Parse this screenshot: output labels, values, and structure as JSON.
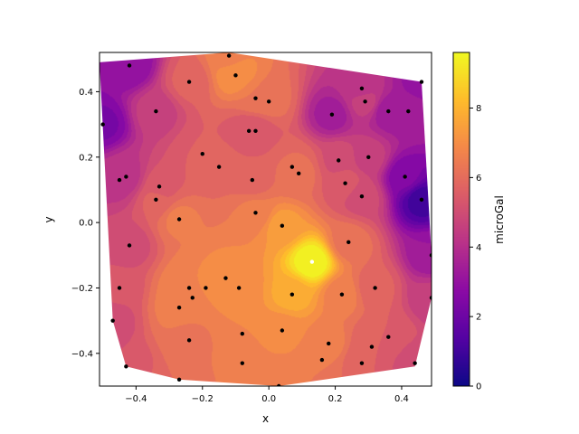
{
  "chart_data": {
    "type": "heatmap",
    "subtype": "filled-contour-with-scatter",
    "xlabel": "x",
    "ylabel": "y",
    "xlim": [
      -0.51,
      0.49
    ],
    "ylim": [
      -0.5,
      0.52
    ],
    "x_ticks": [
      -0.4,
      -0.2,
      0.0,
      0.2,
      0.4
    ],
    "x_tick_labels": [
      "−0.4",
      "−0.2",
      "0.0",
      "0.2",
      "0.4"
    ],
    "y_ticks": [
      -0.4,
      -0.2,
      0.0,
      0.2,
      0.4
    ],
    "y_tick_labels": [
      "−0.4",
      "−0.2",
      "0.0",
      "0.2",
      "0.4"
    ],
    "colormap": "plasma",
    "colorbar": {
      "label": "microGal",
      "range": [
        0,
        9.6
      ],
      "ticks": [
        0,
        2,
        4,
        6,
        8
      ],
      "tick_labels": [
        "0",
        "2",
        "4",
        "6",
        "8"
      ]
    },
    "points": [
      {
        "x": -0.42,
        "y": 0.48,
        "v": 2.8
      },
      {
        "x": -0.24,
        "y": 0.43,
        "v": 5.7
      },
      {
        "x": -0.12,
        "y": 0.51,
        "v": 6.6
      },
      {
        "x": -0.1,
        "y": 0.45,
        "v": 7.2
      },
      {
        "x": -0.04,
        "y": 0.38,
        "v": 6.4
      },
      {
        "x": 0.0,
        "y": 0.37,
        "v": 6.2
      },
      {
        "x": 0.28,
        "y": 0.41,
        "v": 4.2
      },
      {
        "x": 0.29,
        "y": 0.37,
        "v": 4.6
      },
      {
        "x": 0.46,
        "y": 0.43,
        "v": 3.0
      },
      {
        "x": -0.5,
        "y": 0.3,
        "v": 2.3
      },
      {
        "x": -0.34,
        "y": 0.34,
        "v": 4.6
      },
      {
        "x": -0.06,
        "y": 0.28,
        "v": 5.3
      },
      {
        "x": -0.04,
        "y": 0.28,
        "v": 5.3
      },
      {
        "x": 0.19,
        "y": 0.33,
        "v": 3.4
      },
      {
        "x": 0.36,
        "y": 0.34,
        "v": 3.3
      },
      {
        "x": 0.42,
        "y": 0.34,
        "v": 3.4
      },
      {
        "x": -0.2,
        "y": 0.21,
        "v": 5.6
      },
      {
        "x": -0.15,
        "y": 0.17,
        "v": 5.9
      },
      {
        "x": 0.07,
        "y": 0.17,
        "v": 6.0
      },
      {
        "x": 0.09,
        "y": 0.15,
        "v": 6.2
      },
      {
        "x": 0.21,
        "y": 0.19,
        "v": 5.1
      },
      {
        "x": 0.3,
        "y": 0.2,
        "v": 4.6
      },
      {
        "x": -0.43,
        "y": 0.14,
        "v": 4.2
      },
      {
        "x": -0.45,
        "y": 0.13,
        "v": 4.2
      },
      {
        "x": -0.33,
        "y": 0.11,
        "v": 5.4
      },
      {
        "x": -0.05,
        "y": 0.13,
        "v": 5.8
      },
      {
        "x": 0.23,
        "y": 0.12,
        "v": 5.4
      },
      {
        "x": 0.28,
        "y": 0.08,
        "v": 5.0
      },
      {
        "x": 0.41,
        "y": 0.14,
        "v": 2.5
      },
      {
        "x": 0.46,
        "y": 0.07,
        "v": 1.0
      },
      {
        "x": -0.34,
        "y": 0.07,
        "v": 5.7
      },
      {
        "x": -0.27,
        "y": 0.01,
        "v": 6.5
      },
      {
        "x": -0.04,
        "y": 0.03,
        "v": 6.5
      },
      {
        "x": 0.04,
        "y": -0.01,
        "v": 7.4
      },
      {
        "x": -0.42,
        "y": -0.07,
        "v": 5.0
      },
      {
        "x": 0.24,
        "y": -0.06,
        "v": 6.2
      },
      {
        "x": 0.13,
        "y": -0.12,
        "v": 9.6
      },
      {
        "x": 0.49,
        "y": -0.1,
        "v": 3.2
      },
      {
        "x": -0.13,
        "y": -0.17,
        "v": 7.0
      },
      {
        "x": -0.24,
        "y": -0.2,
        "v": 6.8
      },
      {
        "x": -0.19,
        "y": -0.2,
        "v": 6.8
      },
      {
        "x": -0.09,
        "y": -0.2,
        "v": 7.0
      },
      {
        "x": -0.45,
        "y": -0.2,
        "v": 5.3
      },
      {
        "x": 0.07,
        "y": -0.22,
        "v": 7.8
      },
      {
        "x": 0.22,
        "y": -0.22,
        "v": 6.6
      },
      {
        "x": 0.32,
        "y": -0.2,
        "v": 5.7
      },
      {
        "x": 0.49,
        "y": -0.23,
        "v": 4.5
      },
      {
        "x": -0.23,
        "y": -0.23,
        "v": 6.8
      },
      {
        "x": -0.27,
        "y": -0.26,
        "v": 6.6
      },
      {
        "x": -0.47,
        "y": -0.3,
        "v": 5.0
      },
      {
        "x": -0.08,
        "y": -0.34,
        "v": 6.8
      },
      {
        "x": 0.04,
        "y": -0.33,
        "v": 7.0
      },
      {
        "x": 0.18,
        "y": -0.37,
        "v": 6.6
      },
      {
        "x": 0.36,
        "y": -0.35,
        "v": 5.6
      },
      {
        "x": -0.24,
        "y": -0.36,
        "v": 6.2
      },
      {
        "x": 0.31,
        "y": -0.38,
        "v": 5.6
      },
      {
        "x": 0.16,
        "y": -0.42,
        "v": 6.4
      },
      {
        "x": -0.43,
        "y": -0.44,
        "v": 5.2
      },
      {
        "x": -0.08,
        "y": -0.43,
        "v": 6.6
      },
      {
        "x": 0.28,
        "y": -0.43,
        "v": 5.6
      },
      {
        "x": 0.44,
        "y": -0.43,
        "v": 4.8
      },
      {
        "x": -0.27,
        "y": -0.48,
        "v": 6.0
      },
      {
        "x": 0.03,
        "y": -0.5,
        "v": 6.4
      }
    ],
    "hull": [
      [
        -0.51,
        0.49
      ],
      [
        -0.12,
        0.52
      ],
      [
        0.46,
        0.43
      ],
      [
        0.49,
        -0.1
      ],
      [
        0.49,
        -0.23
      ],
      [
        0.44,
        -0.44
      ],
      [
        0.03,
        -0.5
      ],
      [
        -0.27,
        -0.48
      ],
      [
        -0.43,
        -0.44
      ],
      [
        -0.47,
        -0.3
      ]
    ]
  }
}
